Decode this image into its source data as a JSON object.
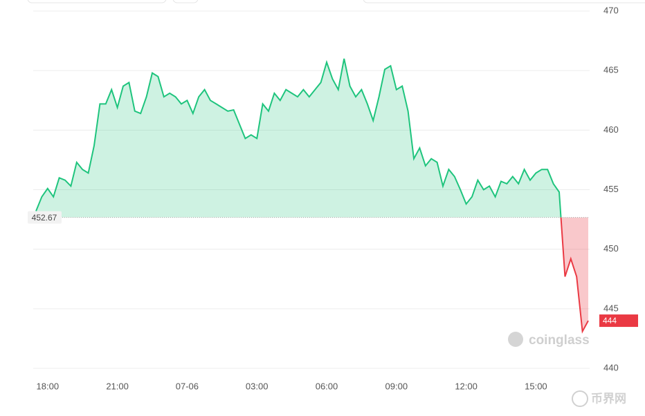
{
  "chart_data": {
    "type": "line",
    "categories": [
      null,
      null,
      "18:00",
      null,
      null,
      null,
      null,
      null,
      null,
      null,
      null,
      null,
      null,
      null,
      "21:00",
      null,
      null,
      null,
      null,
      null,
      null,
      null,
      null,
      null,
      null,
      null,
      "07-06",
      null,
      null,
      null,
      null,
      null,
      null,
      null,
      null,
      null,
      null,
      null,
      "03:00",
      null,
      null,
      null,
      null,
      null,
      null,
      null,
      null,
      null,
      null,
      null,
      "06:00",
      null,
      null,
      null,
      null,
      null,
      null,
      null,
      null,
      null,
      null,
      null,
      "09:00",
      null,
      null,
      null,
      null,
      null,
      null,
      null,
      null,
      null,
      null,
      null,
      "12:00",
      null,
      null,
      null,
      null,
      null,
      null,
      null,
      null,
      null,
      null,
      null,
      "15:00",
      null,
      null,
      null,
      null,
      null,
      null,
      null,
      null,
      null
    ],
    "values": [
      453.2,
      454.4,
      455.1,
      454.4,
      456.0,
      455.8,
      455.3,
      457.3,
      456.7,
      456.4,
      458.7,
      462.2,
      462.2,
      463.4,
      461.9,
      463.7,
      464.0,
      461.6,
      461.4,
      462.8,
      464.8,
      464.5,
      462.8,
      463.1,
      462.8,
      462.2,
      462.5,
      461.4,
      462.8,
      463.4,
      462.5,
      462.2,
      461.9,
      461.6,
      461.7,
      460.5,
      459.3,
      459.6,
      459.3,
      462.2,
      461.6,
      463.1,
      462.5,
      463.4,
      463.1,
      462.8,
      463.4,
      462.8,
      463.4,
      464.0,
      465.7,
      464.3,
      463.4,
      466.0,
      463.7,
      462.8,
      463.4,
      462.2,
      460.8,
      462.8,
      465.1,
      465.4,
      463.4,
      463.7,
      461.6,
      457.6,
      458.5,
      457.0,
      457.6,
      457.3,
      455.3,
      456.7,
      456.1,
      455.0,
      453.8,
      454.4,
      455.8,
      455.0,
      455.3,
      454.4,
      455.7,
      455.5,
      456.1,
      455.5,
      456.7,
      455.8,
      456.4,
      456.7,
      456.7,
      455.5,
      454.8,
      447.7,
      449.2,
      447.7,
      443.1,
      444
    ],
    "baseline": 452.67,
    "up_color": "#1ec47d",
    "down_color": "#ea3943",
    "ylim": [
      440,
      470
    ],
    "yticks": [
      440,
      445,
      450,
      455,
      460,
      465,
      470
    ],
    "grid": true,
    "watermark": "coinglass",
    "corner_logo": "币界网"
  }
}
